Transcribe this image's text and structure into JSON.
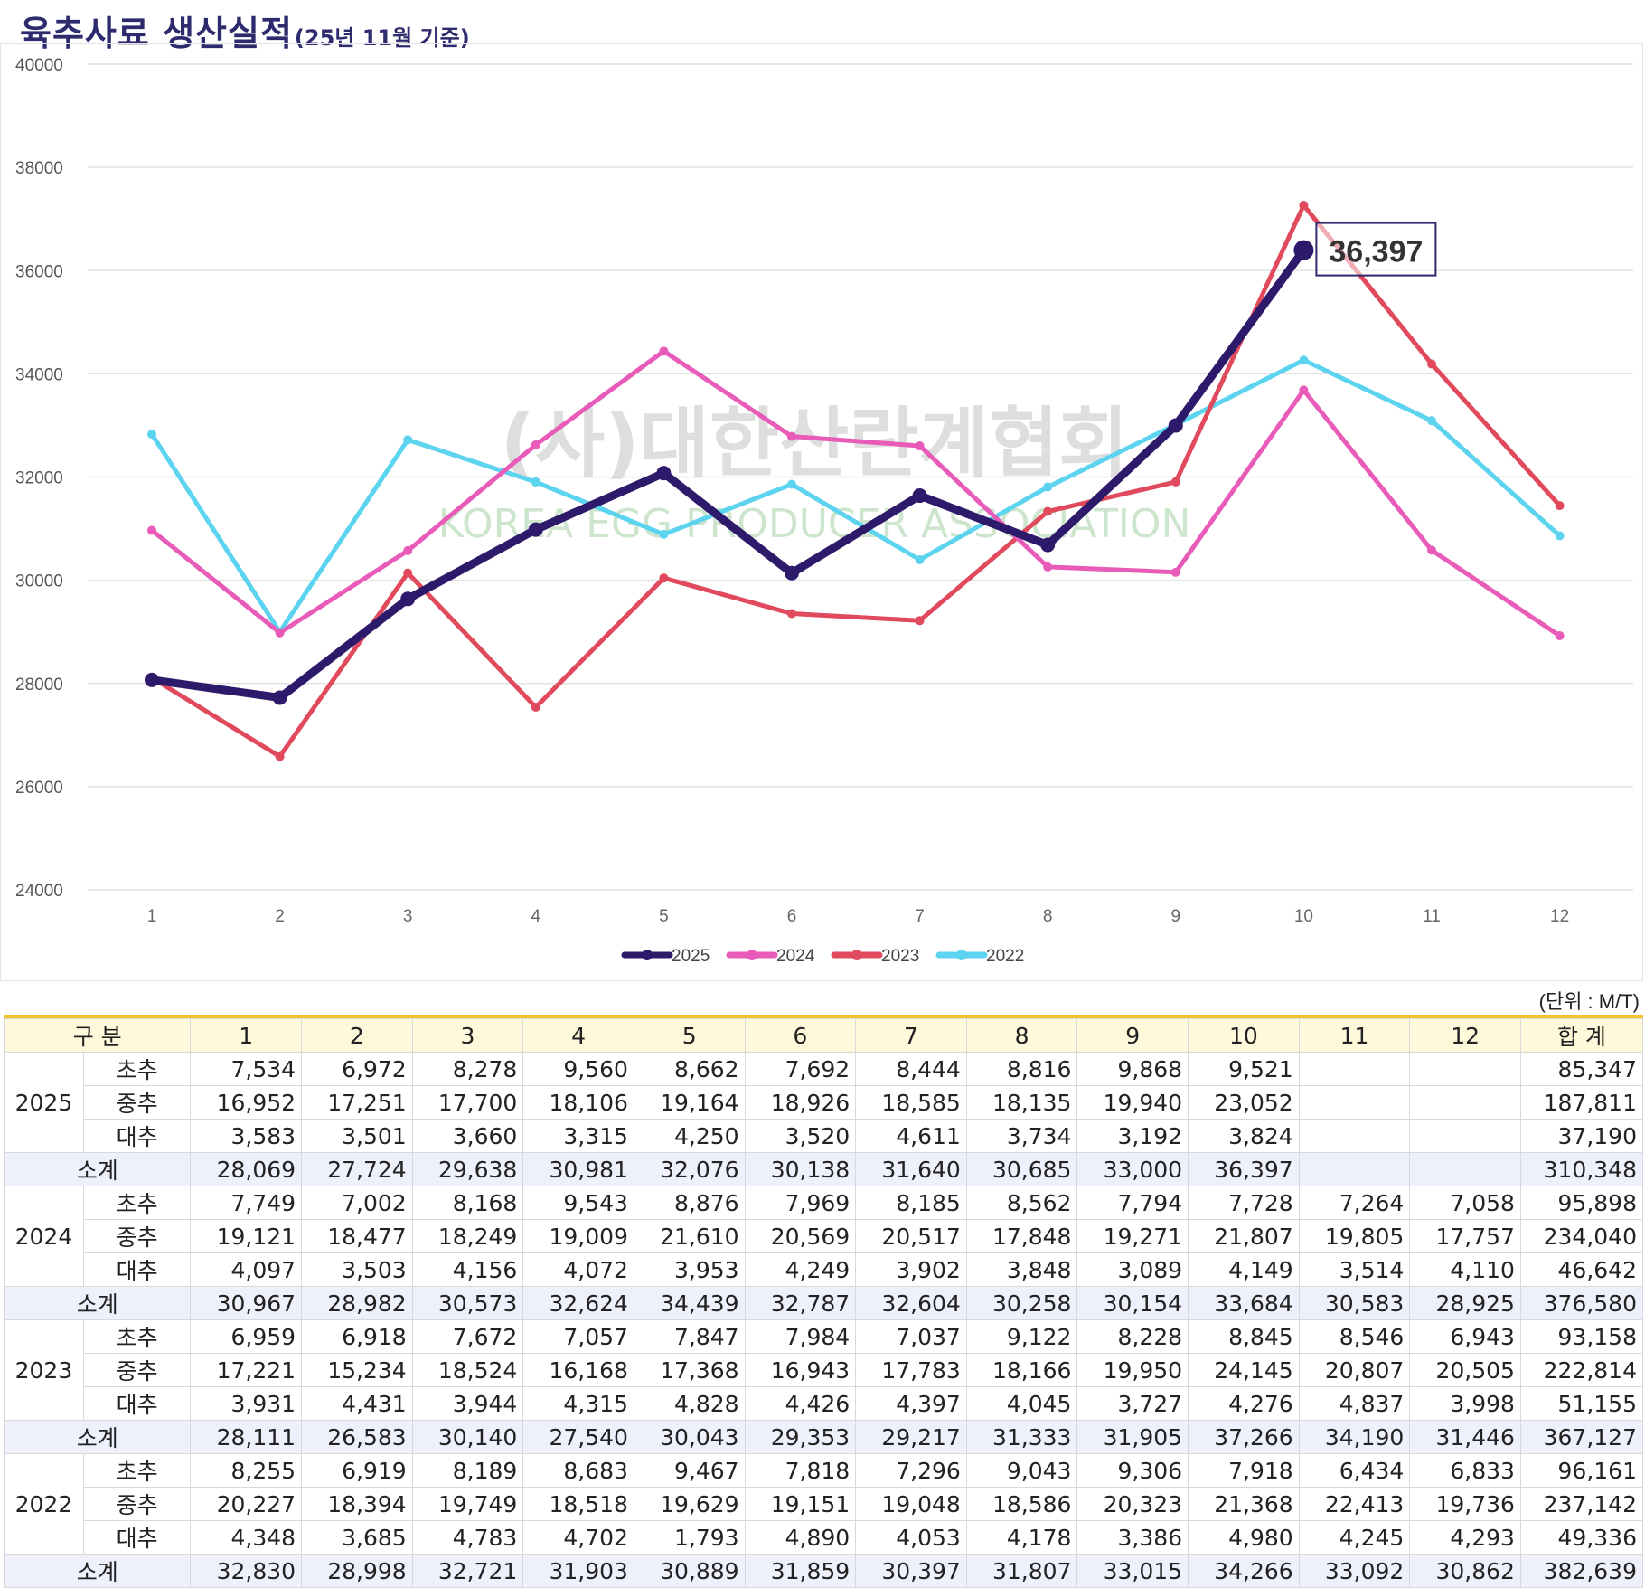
{
  "title": {
    "main": "육추사료 생산실적",
    "sub": "(25년 11월 기준)"
  },
  "watermark": {
    "ko": "(사)대한산란계협회",
    "en": "KOREA EGG PRODUCER ASSOCIATION"
  },
  "unit": "(단위 : M/T)",
  "chart_data": {
    "type": "line",
    "categories": [
      "1",
      "2",
      "3",
      "4",
      "5",
      "6",
      "7",
      "8",
      "9",
      "10",
      "11",
      "12"
    ],
    "ylim": [
      24000,
      40000
    ],
    "yticks": [
      "24000",
      "26000",
      "28000",
      "30000",
      "32000",
      "34000",
      "36000",
      "38000",
      "40000"
    ],
    "grid": true,
    "legend_position": "bottom",
    "callout": {
      "series": "2025",
      "index": 9,
      "label": "36,397"
    },
    "series": [
      {
        "name": "2025",
        "color": "#2e1a6b",
        "width": 9,
        "values": [
          28069,
          27724,
          29638,
          30981,
          32076,
          30138,
          31640,
          30685,
          33000,
          36397,
          null,
          null
        ]
      },
      {
        "name": "2024",
        "color": "#e95bb8",
        "width": 5,
        "values": [
          30967,
          28982,
          30573,
          32624,
          34439,
          32787,
          32604,
          30258,
          30154,
          33684,
          30583,
          28925
        ]
      },
      {
        "name": "2023",
        "color": "#e04a5c",
        "width": 5,
        "values": [
          28111,
          26583,
          30140,
          27540,
          30043,
          29353,
          29217,
          31333,
          31905,
          37266,
          34190,
          31446
        ]
      },
      {
        "name": "2022",
        "color": "#5cd3ef",
        "width": 5,
        "values": [
          32830,
          28998,
          32721,
          31903,
          30889,
          31859,
          30397,
          31807,
          33015,
          34266,
          33092,
          30862
        ]
      }
    ]
  },
  "table": {
    "headers": [
      "구 분",
      "1",
      "2",
      "3",
      "4",
      "5",
      "6",
      "7",
      "8",
      "9",
      "10",
      "11",
      "12",
      "합 계"
    ],
    "subtotal_label": "소계",
    "groups": [
      {
        "year": "2025",
        "rows": [
          {
            "label": "초추",
            "values": [
              "7,534",
              "6,972",
              "8,278",
              "9,560",
              "8,662",
              "7,692",
              "8,444",
              "8,816",
              "9,868",
              "9,521",
              "",
              "",
              "85,347"
            ]
          },
          {
            "label": "중추",
            "values": [
              "16,952",
              "17,251",
              "17,700",
              "18,106",
              "19,164",
              "18,926",
              "18,585",
              "18,135",
              "19,940",
              "23,052",
              "",
              "",
              "187,811"
            ]
          },
          {
            "label": "대추",
            "values": [
              "3,583",
              "3,501",
              "3,660",
              "3,315",
              "4,250",
              "3,520",
              "4,611",
              "3,734",
              "3,192",
              "3,824",
              "",
              "",
              "37,190"
            ]
          }
        ],
        "subtotal": [
          "28,069",
          "27,724",
          "29,638",
          "30,981",
          "32,076",
          "30,138",
          "31,640",
          "30,685",
          "33,000",
          "36,397",
          "",
          "",
          "310,348"
        ]
      },
      {
        "year": "2024",
        "rows": [
          {
            "label": "초추",
            "values": [
              "7,749",
              "7,002",
              "8,168",
              "9,543",
              "8,876",
              "7,969",
              "8,185",
              "8,562",
              "7,794",
              "7,728",
              "7,264",
              "7,058",
              "95,898"
            ]
          },
          {
            "label": "중추",
            "values": [
              "19,121",
              "18,477",
              "18,249",
              "19,009",
              "21,610",
              "20,569",
              "20,517",
              "17,848",
              "19,271",
              "21,807",
              "19,805",
              "17,757",
              "234,040"
            ]
          },
          {
            "label": "대추",
            "values": [
              "4,097",
              "3,503",
              "4,156",
              "4,072",
              "3,953",
              "4,249",
              "3,902",
              "3,848",
              "3,089",
              "4,149",
              "3,514",
              "4,110",
              "46,642"
            ]
          }
        ],
        "subtotal": [
          "30,967",
          "28,982",
          "30,573",
          "32,624",
          "34,439",
          "32,787",
          "32,604",
          "30,258",
          "30,154",
          "33,684",
          "30,583",
          "28,925",
          "376,580"
        ]
      },
      {
        "year": "2023",
        "rows": [
          {
            "label": "초추",
            "values": [
              "6,959",
              "6,918",
              "7,672",
              "7,057",
              "7,847",
              "7,984",
              "7,037",
              "9,122",
              "8,228",
              "8,845",
              "8,546",
              "6,943",
              "93,158"
            ]
          },
          {
            "label": "중추",
            "values": [
              "17,221",
              "15,234",
              "18,524",
              "16,168",
              "17,368",
              "16,943",
              "17,783",
              "18,166",
              "19,950",
              "24,145",
              "20,807",
              "20,505",
              "222,814"
            ]
          },
          {
            "label": "대추",
            "values": [
              "3,931",
              "4,431",
              "3,944",
              "4,315",
              "4,828",
              "4,426",
              "4,397",
              "4,045",
              "3,727",
              "4,276",
              "4,837",
              "3,998",
              "51,155"
            ]
          }
        ],
        "subtotal": [
          "28,111",
          "26,583",
          "30,140",
          "27,540",
          "30,043",
          "29,353",
          "29,217",
          "31,333",
          "31,905",
          "37,266",
          "34,190",
          "31,446",
          "367,127"
        ]
      },
      {
        "year": "2022",
        "rows": [
          {
            "label": "초추",
            "values": [
              "8,255",
              "6,919",
              "8,189",
              "8,683",
              "9,467",
              "7,818",
              "7,296",
              "9,043",
              "9,306",
              "7,918",
              "6,434",
              "6,833",
              "96,161"
            ]
          },
          {
            "label": "중추",
            "values": [
              "20,227",
              "18,394",
              "19,749",
              "18,518",
              "19,629",
              "19,151",
              "19,048",
              "18,586",
              "20,323",
              "21,368",
              "22,413",
              "19,736",
              "237,142"
            ]
          },
          {
            "label": "대추",
            "values": [
              "4,348",
              "3,685",
              "4,783",
              "4,702",
              "1,793",
              "4,890",
              "4,053",
              "4,178",
              "3,386",
              "4,980",
              "4,245",
              "4,293",
              "49,336"
            ]
          }
        ],
        "subtotal": [
          "32,830",
          "28,998",
          "32,721",
          "31,903",
          "30,889",
          "31,859",
          "30,397",
          "31,807",
          "33,015",
          "34,266",
          "33,092",
          "30,862",
          "382,639"
        ]
      }
    ]
  }
}
